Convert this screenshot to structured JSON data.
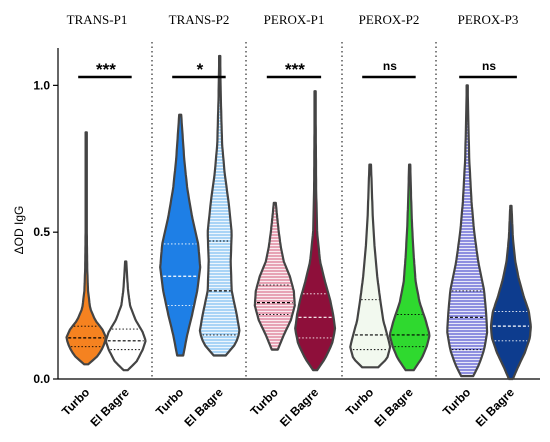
{
  "chart_data": {
    "type": "violin",
    "ylabel": "ΔOD IgG",
    "ylim": [
      0,
      1.1
    ],
    "yticks": [
      0.0,
      0.5,
      1.0
    ],
    "yticklabels": [
      "0.0",
      "0.5",
      "1.0"
    ],
    "panels": [
      {
        "title": "TRANS-P1",
        "significance": "***",
        "violins": [
          {
            "category": "Turbo",
            "color": "#f58220",
            "fill_style": "solid",
            "min": 0.05,
            "max": 0.84,
            "q1": 0.11,
            "median": 0.14,
            "q3": 0.18,
            "profile": [
              [
                0.05,
                0.1
              ],
              [
                0.08,
                0.6
              ],
              [
                0.11,
                0.85
              ],
              [
                0.14,
                1.0
              ],
              [
                0.17,
                0.8
              ],
              [
                0.2,
                0.45
              ],
              [
                0.24,
                0.2
              ],
              [
                0.3,
                0.09
              ],
              [
                0.38,
                0.05
              ],
              [
                0.5,
                0.03
              ],
              [
                0.84,
                0.02
              ]
            ]
          },
          {
            "category": "El Bagre",
            "color": "#ffffff",
            "fill_style": "solid",
            "min": 0.03,
            "max": 0.4,
            "q1": 0.1,
            "median": 0.13,
            "q3": 0.17,
            "profile": [
              [
                0.03,
                0.1
              ],
              [
                0.06,
                0.55
              ],
              [
                0.1,
                0.85
              ],
              [
                0.13,
                1.0
              ],
              [
                0.16,
                0.85
              ],
              [
                0.2,
                0.5
              ],
              [
                0.25,
                0.22
              ],
              [
                0.3,
                0.12
              ],
              [
                0.35,
                0.07
              ],
              [
                0.4,
                0.03
              ]
            ]
          }
        ]
      },
      {
        "title": "TRANS-P2",
        "significance": "*",
        "violins": [
          {
            "category": "Turbo",
            "color": "#1e7fe6",
            "fill_style": "solid",
            "min": 0.08,
            "max": 0.9,
            "q1": 0.25,
            "median": 0.35,
            "q3": 0.46,
            "profile": [
              [
                0.08,
                0.15
              ],
              [
                0.15,
                0.35
              ],
              [
                0.22,
                0.6
              ],
              [
                0.3,
                0.85
              ],
              [
                0.38,
                1.0
              ],
              [
                0.46,
                0.9
              ],
              [
                0.55,
                0.6
              ],
              [
                0.65,
                0.35
              ],
              [
                0.75,
                0.2
              ],
              [
                0.85,
                0.1
              ],
              [
                0.9,
                0.05
              ]
            ]
          },
          {
            "category": "El Bagre",
            "color": "#a9d4f6",
            "fill_style": "hatch",
            "min": 0.08,
            "max": 1.1,
            "q1": 0.15,
            "median": 0.3,
            "q3": 0.47,
            "profile": [
              [
                0.08,
                0.3
              ],
              [
                0.12,
                0.8
              ],
              [
                0.16,
                1.0
              ],
              [
                0.22,
                0.85
              ],
              [
                0.3,
                0.6
              ],
              [
                0.4,
                0.55
              ],
              [
                0.5,
                0.6
              ],
              [
                0.6,
                0.45
              ],
              [
                0.7,
                0.25
              ],
              [
                0.8,
                0.12
              ],
              [
                0.95,
                0.06
              ],
              [
                1.1,
                0.02
              ]
            ]
          }
        ]
      },
      {
        "title": "PEROX-P1",
        "significance": "***",
        "violins": [
          {
            "category": "Turbo",
            "color": "#e7a3b5",
            "fill_style": "hatch",
            "min": 0.1,
            "max": 0.6,
            "q1": 0.22,
            "median": 0.26,
            "q3": 0.32,
            "profile": [
              [
                0.1,
                0.15
              ],
              [
                0.15,
                0.45
              ],
              [
                0.2,
                0.8
              ],
              [
                0.25,
                1.0
              ],
              [
                0.3,
                0.95
              ],
              [
                0.35,
                0.75
              ],
              [
                0.4,
                0.45
              ],
              [
                0.45,
                0.3
              ],
              [
                0.5,
                0.2
              ],
              [
                0.55,
                0.12
              ],
              [
                0.6,
                0.05
              ]
            ]
          },
          {
            "category": "El Bagre",
            "color": "#8e0f3a",
            "fill_style": "solid",
            "min": 0.03,
            "max": 0.98,
            "q1": 0.14,
            "median": 0.21,
            "q3": 0.29,
            "profile": [
              [
                0.03,
                0.1
              ],
              [
                0.07,
                0.5
              ],
              [
                0.12,
                0.85
              ],
              [
                0.17,
                1.0
              ],
              [
                0.22,
                0.9
              ],
              [
                0.27,
                0.75
              ],
              [
                0.33,
                0.5
              ],
              [
                0.4,
                0.25
              ],
              [
                0.5,
                0.1
              ],
              [
                0.65,
                0.05
              ],
              [
                0.98,
                0.02
              ]
            ]
          }
        ]
      },
      {
        "title": "PEROX-P2",
        "significance": "ns",
        "violins": [
          {
            "category": "Turbo",
            "color": "#f2f9ef",
            "fill_style": "solid",
            "min": 0.04,
            "max": 0.73,
            "q1": 0.1,
            "median": 0.15,
            "q3": 0.27,
            "profile": [
              [
                0.04,
                0.4
              ],
              [
                0.07,
                0.85
              ],
              [
                0.11,
                1.0
              ],
              [
                0.15,
                0.85
              ],
              [
                0.2,
                0.65
              ],
              [
                0.27,
                0.5
              ],
              [
                0.35,
                0.35
              ],
              [
                0.45,
                0.22
              ],
              [
                0.55,
                0.13
              ],
              [
                0.65,
                0.08
              ],
              [
                0.73,
                0.04
              ]
            ]
          },
          {
            "category": "El Bagre",
            "color": "#2fd92f",
            "fill_style": "solid",
            "min": 0.03,
            "max": 0.73,
            "q1": 0.11,
            "median": 0.15,
            "q3": 0.22,
            "profile": [
              [
                0.03,
                0.2
              ],
              [
                0.07,
                0.6
              ],
              [
                0.11,
                0.85
              ],
              [
                0.15,
                1.0
              ],
              [
                0.2,
                0.8
              ],
              [
                0.26,
                0.5
              ],
              [
                0.33,
                0.3
              ],
              [
                0.42,
                0.2
              ],
              [
                0.52,
                0.12
              ],
              [
                0.62,
                0.07
              ],
              [
                0.73,
                0.03
              ]
            ]
          }
        ]
      },
      {
        "title": "PEROX-P3",
        "significance": "ns",
        "violins": [
          {
            "category": "Turbo",
            "color": "#8e8fe0",
            "fill_style": "hatch",
            "min": 0.01,
            "max": 1.0,
            "q1": 0.1,
            "median": 0.21,
            "q3": 0.3,
            "profile": [
              [
                0.01,
                0.3
              ],
              [
                0.05,
                0.6
              ],
              [
                0.1,
                0.85
              ],
              [
                0.16,
                1.0
              ],
              [
                0.22,
                0.95
              ],
              [
                0.3,
                0.85
              ],
              [
                0.4,
                0.55
              ],
              [
                0.5,
                0.35
              ],
              [
                0.6,
                0.22
              ],
              [
                0.75,
                0.1
              ],
              [
                0.9,
                0.05
              ],
              [
                1.0,
                0.02
              ]
            ]
          },
          {
            "category": "El Bagre",
            "color": "#0d3c8e",
            "fill_style": "solid",
            "min": 0.0,
            "max": 0.59,
            "q1": 0.13,
            "median": 0.18,
            "q3": 0.23,
            "profile": [
              [
                0.0,
                0.1
              ],
              [
                0.04,
                0.35
              ],
              [
                0.09,
                0.7
              ],
              [
                0.14,
                0.95
              ],
              [
                0.18,
                1.0
              ],
              [
                0.23,
                0.9
              ],
              [
                0.28,
                0.65
              ],
              [
                0.34,
                0.4
              ],
              [
                0.4,
                0.22
              ],
              [
                0.48,
                0.1
              ],
              [
                0.59,
                0.03
              ]
            ]
          }
        ]
      }
    ]
  }
}
